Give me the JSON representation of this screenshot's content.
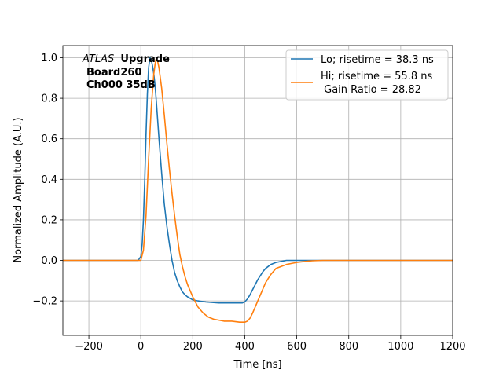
{
  "chart_data": {
    "type": "line",
    "title": "",
    "xlabel": "Time [ns]",
    "ylabel": "Normalized Amplitude (A.U.)",
    "xlim": [
      -300,
      1200
    ],
    "ylim": [
      -0.37,
      1.06
    ],
    "xticks": [
      -200,
      0,
      200,
      400,
      600,
      800,
      1000,
      1200
    ],
    "xtick_labels": [
      "−200",
      "0",
      "200",
      "400",
      "600",
      "800",
      "1000",
      "1200"
    ],
    "yticks": [
      -0.2,
      0.0,
      0.2,
      0.4,
      0.6,
      0.8,
      1.0
    ],
    "ytick_labels": [
      "−0.2",
      "0.0",
      "0.2",
      "0.4",
      "0.6",
      "0.8",
      "1.0"
    ],
    "grid": true,
    "legend_position": "upper-right",
    "annotation": {
      "italic": "ATLAS",
      "bold": "Upgrade",
      "line2": "Board260",
      "line3": "Ch000 35dB"
    },
    "series": [
      {
        "name": "Lo; risetime = 38.3 ns",
        "color": "#1f77b4",
        "x": [
          -300,
          -10,
          0,
          5,
          10,
          15,
          20,
          25,
          30,
          35,
          40,
          45,
          50,
          55,
          60,
          70,
          80,
          90,
          100,
          110,
          120,
          130,
          140,
          150,
          160,
          170,
          180,
          200,
          220,
          250,
          300,
          350,
          390,
          400,
          410,
          420,
          430,
          440,
          450,
          460,
          470,
          480,
          490,
          500,
          520,
          540,
          560,
          580,
          600,
          650,
          700,
          1200
        ],
        "y": [
          0.0,
          0.0,
          0.02,
          0.08,
          0.2,
          0.4,
          0.62,
          0.82,
          0.95,
          1.0,
          0.99,
          0.96,
          0.92,
          0.86,
          0.78,
          0.6,
          0.43,
          0.28,
          0.17,
          0.08,
          0.0,
          -0.06,
          -0.1,
          -0.13,
          -0.155,
          -0.17,
          -0.18,
          -0.195,
          -0.2,
          -0.205,
          -0.21,
          -0.21,
          -0.21,
          -0.205,
          -0.19,
          -0.17,
          -0.145,
          -0.12,
          -0.095,
          -0.075,
          -0.055,
          -0.04,
          -0.03,
          -0.02,
          -0.01,
          -0.005,
          0.0,
          0.0,
          0.0,
          0.0,
          0.0,
          0.0
        ]
      },
      {
        "name": "Hi; risetime = 55.8 ns\n Gain Ratio = 28.82",
        "color": "#ff7f0e",
        "x": [
          -300,
          0,
          10,
          20,
          30,
          40,
          50,
          55,
          60,
          65,
          70,
          80,
          90,
          100,
          110,
          120,
          130,
          140,
          150,
          160,
          170,
          180,
          190,
          200,
          220,
          240,
          260,
          280,
          300,
          320,
          350,
          380,
          400,
          410,
          420,
          430,
          440,
          450,
          460,
          470,
          480,
          490,
          500,
          510,
          520,
          540,
          560,
          580,
          600,
          620,
          640,
          660,
          700,
          800,
          1200
        ],
        "y": [
          0.0,
          0.0,
          0.05,
          0.22,
          0.5,
          0.75,
          0.92,
          0.97,
          1.0,
          0.98,
          0.95,
          0.85,
          0.72,
          0.58,
          0.45,
          0.33,
          0.22,
          0.12,
          0.03,
          -0.03,
          -0.08,
          -0.12,
          -0.15,
          -0.18,
          -0.23,
          -0.26,
          -0.28,
          -0.29,
          -0.295,
          -0.3,
          -0.3,
          -0.305,
          -0.305,
          -0.3,
          -0.285,
          -0.26,
          -0.23,
          -0.2,
          -0.17,
          -0.14,
          -0.11,
          -0.09,
          -0.07,
          -0.055,
          -0.04,
          -0.03,
          -0.02,
          -0.015,
          -0.01,
          -0.007,
          -0.004,
          -0.002,
          0.0,
          0.0,
          0.0
        ]
      }
    ]
  }
}
